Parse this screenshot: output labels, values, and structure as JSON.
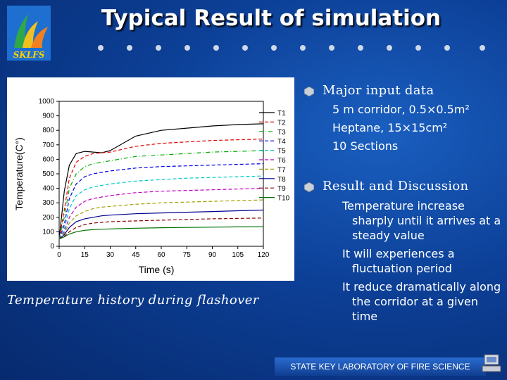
{
  "slide": {
    "title": "Typical Result of simulation",
    "logo_text": "SKLFS",
    "caption": "Temperature history during flashover",
    "footer": "STATE KEY LABORATORY OF FIRE SCIENCE"
  },
  "sections": [
    {
      "heading": "Major input data",
      "items": [
        "5 m corridor, 0.5×0.5m²",
        "Heptane, 15×15cm²",
        "10 Sections"
      ]
    },
    {
      "heading": "Result and Discussion",
      "items": [
        "Temperature increase sharply until it arrives at a steady value",
        "It will experiences a fluctuation period",
        "It reduce dramatically along the corridor at a given time"
      ]
    }
  ],
  "chart_data": {
    "type": "line",
    "xlabel": "Time (s)",
    "ylabel": "Temperature(C°)",
    "xlim": [
      0,
      120
    ],
    "ylim": [
      0,
      1000
    ],
    "xticks": [
      0,
      15,
      30,
      45,
      60,
      75,
      90,
      105,
      120
    ],
    "yticks": [
      0,
      100,
      200,
      300,
      400,
      500,
      600,
      700,
      800,
      900,
      1000
    ],
    "legend_position": "top-right",
    "x": [
      0,
      3,
      6,
      10,
      15,
      20,
      25,
      30,
      45,
      60,
      75,
      90,
      105,
      120
    ],
    "series": [
      {
        "name": "T1",
        "style": "solid",
        "values": [
          50,
          380,
          560,
          640,
          655,
          650,
          645,
          660,
          760,
          800,
          815,
          830,
          840,
          845
        ]
      },
      {
        "name": "T2",
        "style": "dash",
        "values": [
          50,
          250,
          470,
          580,
          620,
          640,
          645,
          650,
          690,
          710,
          720,
          730,
          735,
          740
        ]
      },
      {
        "name": "T3",
        "style": "dashdot",
        "values": [
          50,
          200,
          400,
          500,
          550,
          570,
          580,
          590,
          620,
          630,
          640,
          650,
          655,
          660
        ]
      },
      {
        "name": "T4",
        "style": "dash",
        "values": [
          50,
          150,
          330,
          430,
          480,
          500,
          510,
          520,
          540,
          550,
          555,
          560,
          565,
          570
        ]
      },
      {
        "name": "T5",
        "style": "dash",
        "values": [
          50,
          120,
          260,
          350,
          390,
          410,
          420,
          430,
          450,
          460,
          470,
          475,
          480,
          485
        ]
      },
      {
        "name": "T6",
        "style": "dash",
        "values": [
          50,
          100,
          200,
          270,
          310,
          330,
          340,
          350,
          370,
          380,
          385,
          390,
          395,
          400
        ]
      },
      {
        "name": "T7",
        "style": "dash",
        "values": [
          50,
          90,
          160,
          210,
          240,
          260,
          270,
          275,
          290,
          300,
          305,
          310,
          315,
          320
        ]
      },
      {
        "name": "T8",
        "style": "solid",
        "values": [
          50,
          80,
          130,
          170,
          190,
          200,
          210,
          215,
          225,
          230,
          235,
          240,
          245,
          250
        ]
      },
      {
        "name": "T9",
        "style": "dash",
        "values": [
          50,
          70,
          100,
          130,
          150,
          160,
          165,
          170,
          175,
          180,
          185,
          190,
          192,
          195
        ]
      },
      {
        "name": "T10",
        "style": "solid",
        "values": [
          50,
          65,
          85,
          100,
          110,
          115,
          118,
          120,
          125,
          128,
          130,
          132,
          134,
          135
        ]
      }
    ],
    "colors": [
      "#000000",
      "#e00000",
      "#00aa00",
      "#0000e0",
      "#00c8c8",
      "#c000c0",
      "#a0a000",
      "#000090",
      "#8a0000",
      "#007000"
    ]
  }
}
